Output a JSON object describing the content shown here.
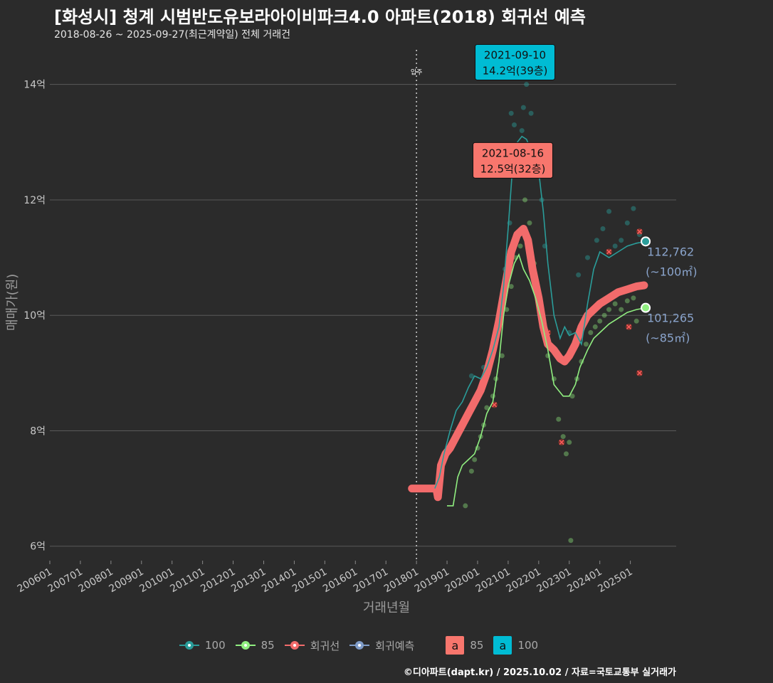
{
  "header": {
    "title": "[화성시] 청계 시범반도유보라아이비파크4.0 아파트(2018) 회귀선 예측",
    "subtitle": "2018-08-26 ~ 2025-09-27(최근계약일) 전체 거래건"
  },
  "footer": {
    "credit": "©디아파트(dapt.kr) / 2025.10.02 / 자료=국토교통부 실거래가"
  },
  "colors": {
    "background": "#2b2b2b",
    "grid": "#5a5a5a",
    "s100": "#2a9d9a",
    "s85": "#90ee80",
    "regression": "#f26b6b",
    "forecast": "#7f9cc8",
    "callout100": "#00bcd4",
    "callout85": "#f8766d"
  },
  "chart_data": {
    "type": "line",
    "xlabel": "거래년월",
    "ylabel": "매매가(원)",
    "x_ticks": [
      "200601",
      "200701",
      "200801",
      "200901",
      "201001",
      "201101",
      "201201",
      "201301",
      "201401",
      "201501",
      "201601",
      "201701",
      "201801",
      "201901",
      "202001",
      "202101",
      "202201",
      "202301",
      "202401",
      "202501"
    ],
    "y_ticks": [
      {
        "value": 6,
        "label": "6억"
      },
      {
        "value": 8,
        "label": "8억"
      },
      {
        "value": 10,
        "label": "10억"
      },
      {
        "value": 12,
        "label": "12억"
      },
      {
        "value": 14,
        "label": "14억"
      }
    ],
    "ylim": [
      5.75,
      14.6
    ],
    "x_unit": "year",
    "move_in": {
      "x": 2018.0,
      "label": "입주"
    },
    "series": [
      {
        "name": "100",
        "role": "area100",
        "points": [
          [
            2018.6,
            7.0
          ],
          [
            2018.75,
            7.2
          ],
          [
            2018.9,
            7.6
          ],
          [
            2019.1,
            8.0
          ],
          [
            2019.3,
            8.35
          ],
          [
            2019.5,
            8.5
          ],
          [
            2019.7,
            8.75
          ],
          [
            2019.9,
            8.95
          ],
          [
            2020.1,
            8.9
          ],
          [
            2020.3,
            9.1
          ],
          [
            2020.5,
            9.4
          ],
          [
            2020.7,
            9.8
          ],
          [
            2020.85,
            10.5
          ],
          [
            2021.0,
            11.5
          ],
          [
            2021.15,
            12.6
          ],
          [
            2021.3,
            13.0
          ],
          [
            2021.45,
            13.1
          ],
          [
            2021.6,
            13.05
          ],
          [
            2021.8,
            12.8
          ],
          [
            2022.0,
            12.5
          ],
          [
            2022.15,
            11.8
          ],
          [
            2022.3,
            10.9
          ],
          [
            2022.5,
            10.0
          ],
          [
            2022.7,
            9.6
          ],
          [
            2022.85,
            9.8
          ],
          [
            2023.0,
            9.65
          ],
          [
            2023.2,
            9.7
          ],
          [
            2023.4,
            9.5
          ],
          [
            2023.6,
            10.2
          ],
          [
            2023.8,
            10.8
          ],
          [
            2024.0,
            11.1
          ],
          [
            2024.3,
            11.0
          ],
          [
            2024.6,
            11.1
          ],
          [
            2024.9,
            11.2
          ],
          [
            2025.2,
            11.25
          ],
          [
            2025.5,
            11.28
          ]
        ]
      },
      {
        "name": "85",
        "role": "area85",
        "points": [
          [
            2019.0,
            6.7
          ],
          [
            2019.2,
            6.7
          ],
          [
            2019.35,
            7.2
          ],
          [
            2019.5,
            7.4
          ],
          [
            2019.7,
            7.5
          ],
          [
            2019.9,
            7.6
          ],
          [
            2020.1,
            7.9
          ],
          [
            2020.3,
            8.3
          ],
          [
            2020.5,
            8.5
          ],
          [
            2020.7,
            9.2
          ],
          [
            2020.85,
            10.0
          ],
          [
            2021.0,
            10.5
          ],
          [
            2021.2,
            10.9
          ],
          [
            2021.35,
            11.05
          ],
          [
            2021.5,
            10.8
          ],
          [
            2021.7,
            10.6
          ],
          [
            2021.9,
            10.3
          ],
          [
            2022.1,
            9.9
          ],
          [
            2022.3,
            9.4
          ],
          [
            2022.5,
            8.8
          ],
          [
            2022.65,
            8.7
          ],
          [
            2022.8,
            8.6
          ],
          [
            2023.0,
            8.6
          ],
          [
            2023.2,
            8.8
          ],
          [
            2023.35,
            9.1
          ],
          [
            2023.6,
            9.4
          ],
          [
            2023.8,
            9.6
          ],
          [
            2024.0,
            9.7
          ],
          [
            2024.3,
            9.85
          ],
          [
            2024.6,
            9.95
          ],
          [
            2024.9,
            10.05
          ],
          [
            2025.2,
            10.1
          ],
          [
            2025.5,
            10.13
          ]
        ]
      },
      {
        "name": "회귀선",
        "role": "regression",
        "points": [
          [
            2017.85,
            7.0
          ],
          [
            2018.2,
            7.0
          ],
          [
            2018.5,
            7.0
          ],
          [
            2018.65,
            7.0
          ],
          [
            2018.7,
            6.85
          ],
          [
            2018.8,
            7.4
          ],
          [
            2018.95,
            7.6
          ],
          [
            2019.1,
            7.7
          ],
          [
            2019.3,
            7.9
          ],
          [
            2019.5,
            8.1
          ],
          [
            2019.7,
            8.3
          ],
          [
            2019.9,
            8.5
          ],
          [
            2020.1,
            8.7
          ],
          [
            2020.3,
            9.0
          ],
          [
            2020.5,
            9.4
          ],
          [
            2020.7,
            9.9
          ],
          [
            2020.9,
            10.5
          ],
          [
            2021.1,
            11.1
          ],
          [
            2021.3,
            11.4
          ],
          [
            2021.5,
            11.5
          ],
          [
            2021.65,
            11.3
          ],
          [
            2021.8,
            10.8
          ],
          [
            2022.0,
            10.3
          ],
          [
            2022.15,
            9.8
          ],
          [
            2022.3,
            9.5
          ],
          [
            2022.5,
            9.4
          ],
          [
            2022.7,
            9.25
          ],
          [
            2022.85,
            9.2
          ],
          [
            2023.0,
            9.3
          ],
          [
            2023.2,
            9.5
          ],
          [
            2023.4,
            9.8
          ],
          [
            2023.6,
            10.0
          ],
          [
            2023.8,
            10.1
          ],
          [
            2024.0,
            10.2
          ],
          [
            2024.3,
            10.3
          ],
          [
            2024.6,
            10.4
          ],
          [
            2024.9,
            10.45
          ],
          [
            2025.2,
            10.5
          ],
          [
            2025.45,
            10.52
          ]
        ]
      },
      {
        "name": "회귀예측",
        "role": "forecast",
        "points": []
      }
    ],
    "end_labels": [
      {
        "series": "100",
        "x": 2025.5,
        "y": 11.28,
        "value": "112,762",
        "area": "(~100㎡)"
      },
      {
        "series": "85",
        "x": 2025.5,
        "y": 10.13,
        "value": "101,265",
        "area": "(~85㎡)"
      }
    ],
    "callouts": [
      {
        "series": "100",
        "date": "2021-09-10",
        "price": "14.2억(39층)",
        "x": 2021.69,
        "y": 14.2
      },
      {
        "series": "85",
        "date": "2021-08-16",
        "price": "12.5억(32층)",
        "x": 2021.62,
        "y": 12.5
      }
    ],
    "scatter": {
      "s100": [
        [
          2019.8,
          8.95
        ],
        [
          2020.2,
          9.1
        ],
        [
          2020.5,
          9.5
        ],
        [
          2020.7,
          10.0
        ],
        [
          2020.9,
          10.8
        ],
        [
          2021.05,
          11.6
        ],
        [
          2021.1,
          13.5
        ],
        [
          2021.2,
          13.3
        ],
        [
          2021.3,
          12.8
        ],
        [
          2021.45,
          13.2
        ],
        [
          2021.5,
          13.6
        ],
        [
          2021.6,
          14.0
        ],
        [
          2021.69,
          14.2
        ],
        [
          2021.75,
          13.5
        ],
        [
          2021.85,
          12.9
        ],
        [
          2021.95,
          12.6
        ],
        [
          2022.1,
          12.0
        ],
        [
          2022.2,
          11.2
        ],
        [
          2023.0,
          9.7
        ],
        [
          2023.3,
          10.7
        ],
        [
          2023.6,
          11.0
        ],
        [
          2023.9,
          11.3
        ],
        [
          2024.1,
          11.5
        ],
        [
          2024.3,
          11.8
        ],
        [
          2024.5,
          11.2
        ],
        [
          2024.7,
          11.3
        ],
        [
          2024.9,
          11.6
        ],
        [
          2025.1,
          11.85
        ],
        [
          2025.3,
          11.4
        ]
      ],
      "s85": [
        [
          2019.6,
          6.7
        ],
        [
          2019.8,
          7.3
        ],
        [
          2019.9,
          7.5
        ],
        [
          2020.0,
          7.7
        ],
        [
          2020.1,
          7.9
        ],
        [
          2020.2,
          8.1
        ],
        [
          2020.3,
          8.4
        ],
        [
          2020.5,
          8.6
        ],
        [
          2020.6,
          8.9
        ],
        [
          2020.8,
          9.3
        ],
        [
          2020.95,
          10.1
        ],
        [
          2021.1,
          10.5
        ],
        [
          2021.25,
          11.0
        ],
        [
          2021.4,
          11.2
        ],
        [
          2021.55,
          12.0
        ],
        [
          2021.62,
          12.5
        ],
        [
          2021.7,
          11.6
        ],
        [
          2021.85,
          10.9
        ],
        [
          2022.0,
          10.3
        ],
        [
          2022.15,
          9.7
        ],
        [
          2022.3,
          9.3
        ],
        [
          2022.5,
          8.9
        ],
        [
          2022.65,
          8.2
        ],
        [
          2022.8,
          7.9
        ],
        [
          2022.9,
          7.6
        ],
        [
          2023.0,
          7.8
        ],
        [
          2023.1,
          8.6
        ],
        [
          2023.25,
          8.9
        ],
        [
          2023.4,
          9.2
        ],
        [
          2023.55,
          9.5
        ],
        [
          2023.7,
          9.7
        ],
        [
          2023.85,
          9.8
        ],
        [
          2024.0,
          9.9
        ],
        [
          2024.15,
          10.0
        ],
        [
          2024.3,
          10.1
        ],
        [
          2024.5,
          10.2
        ],
        [
          2024.7,
          10.1
        ],
        [
          2024.9,
          10.25
        ],
        [
          2025.1,
          10.3
        ],
        [
          2025.2,
          9.9
        ],
        [
          2023.05,
          6.1
        ]
      ],
      "reg_marks": [
        [
          2020.55,
          8.45
        ],
        [
          2021.7,
          12.8
        ],
        [
          2022.3,
          9.7
        ],
        [
          2022.75,
          7.8
        ],
        [
          2024.3,
          11.1
        ],
        [
          2024.95,
          9.8
        ],
        [
          2025.3,
          11.45
        ],
        [
          2025.3,
          9.0
        ]
      ]
    },
    "legend": [
      {
        "label": "100",
        "kind": "line-dot",
        "color": "#2a9d9a"
      },
      {
        "label": "85",
        "kind": "line-dot",
        "color": "#90ee80"
      },
      {
        "label": "회귀선",
        "kind": "line-dot",
        "color": "#f26b6b"
      },
      {
        "label": "회귀예측",
        "kind": "line-dot",
        "color": "#7f9cc8"
      },
      {
        "label": "85",
        "kind": "box",
        "color": "#f8766d",
        "text": "a"
      },
      {
        "label": "100",
        "kind": "box",
        "color": "#00bcd4",
        "text": "a"
      }
    ],
    "legend_position": "bottom",
    "grid": true
  }
}
